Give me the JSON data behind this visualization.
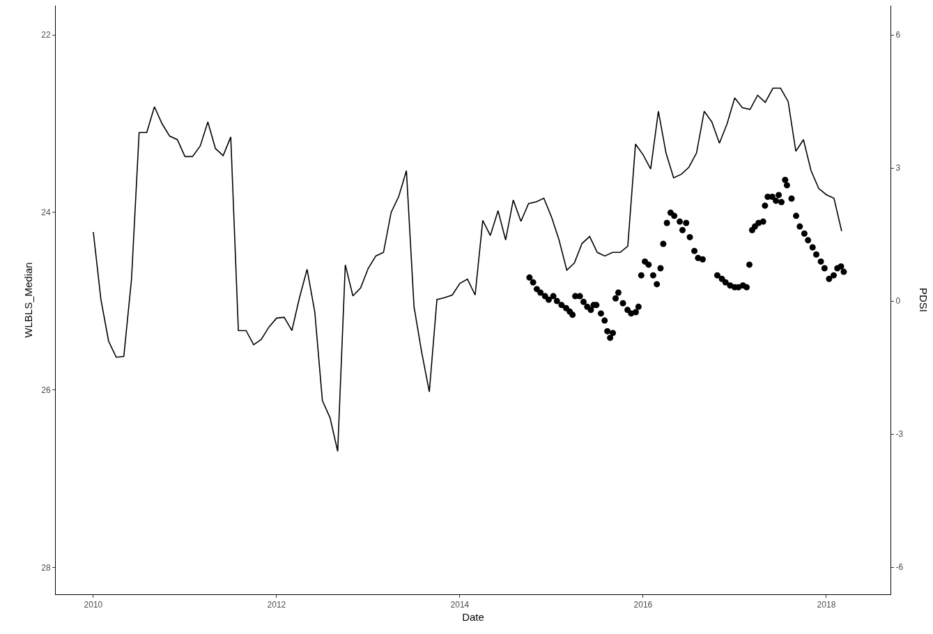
{
  "chart_data": {
    "type": "line",
    "xlabel": "Date",
    "ylabel": "WLBLS_Median",
    "y2label": "PDSI",
    "xlim": [
      2009.59,
      2018.7
    ],
    "xticks": [
      2010,
      2012,
      2014,
      2016,
      2018
    ],
    "ylim": [
      28.3,
      21.67
    ],
    "yticks": [
      22,
      24,
      26,
      28
    ],
    "y2lim": [
      -6.61,
      6.66
    ],
    "y2ticks": [
      -6,
      -3,
      0,
      3,
      6
    ],
    "series": [
      {
        "color": "#000000",
        "marker": "none",
        "line_style": "solid",
        "x": [
          2010.0,
          2010.083,
          2010.167,
          2010.25,
          2010.333,
          2010.417,
          2010.5,
          2010.583,
          2010.667,
          2010.75,
          2010.833,
          2010.917,
          2011.0,
          2011.083,
          2011.167,
          2011.25,
          2011.333,
          2011.417,
          2011.5,
          2011.583,
          2011.667,
          2011.75,
          2011.833,
          2011.917,
          2012.0,
          2012.083,
          2012.167,
          2012.25,
          2012.333,
          2012.417,
          2012.5,
          2012.583,
          2012.667,
          2012.75,
          2012.833,
          2012.917,
          2013.0,
          2013.083,
          2013.167,
          2013.25,
          2013.333,
          2013.417,
          2013.5,
          2013.583,
          2013.667,
          2013.75,
          2013.833,
          2013.917,
          2014.0,
          2014.083,
          2014.167,
          2014.25,
          2014.333,
          2014.417,
          2014.5,
          2014.583,
          2014.667,
          2014.75,
          2014.833,
          2014.917,
          2015.0,
          2015.083,
          2015.167,
          2015.25,
          2015.333,
          2015.417,
          2015.5,
          2015.583,
          2015.667,
          2015.75,
          2015.833,
          2015.917,
          2016.0,
          2016.083,
          2016.167,
          2016.25,
          2016.333,
          2016.417,
          2016.5,
          2016.583,
          2016.667,
          2016.75,
          2016.833,
          2016.917,
          2017.0,
          2017.083,
          2017.167,
          2017.25,
          2017.333,
          2017.417,
          2017.5,
          2017.583,
          2017.667,
          2017.75,
          2017.833,
          2017.917,
          2018.0,
          2018.083,
          2018.167
        ],
        "values": [
          24.22,
          24.98,
          25.45,
          25.63,
          25.62,
          24.75,
          23.1,
          23.1,
          22.81,
          23.0,
          23.14,
          23.18,
          23.37,
          23.37,
          23.25,
          22.98,
          23.28,
          23.36,
          23.15,
          25.33,
          25.33,
          25.49,
          25.43,
          25.29,
          25.19,
          25.18,
          25.33,
          24.96,
          24.64,
          25.12,
          26.12,
          26.31,
          26.69,
          24.59,
          24.94,
          24.85,
          24.63,
          24.49,
          24.45,
          24.0,
          23.82,
          23.53,
          25.06,
          25.57,
          26.02,
          24.98,
          24.96,
          24.93,
          24.8,
          24.75,
          24.93,
          24.09,
          24.26,
          23.98,
          24.31,
          23.86,
          24.1,
          23.9,
          23.88,
          23.84,
          24.05,
          24.31,
          24.65,
          24.57,
          24.35,
          24.27,
          24.45,
          24.49,
          24.45,
          24.45,
          24.38,
          23.23,
          23.35,
          23.51,
          22.86,
          23.33,
          23.61,
          23.57,
          23.49,
          23.33,
          22.86,
          22.98,
          23.22,
          23.0,
          22.71,
          22.82,
          22.84,
          22.68,
          22.76,
          22.6,
          22.6,
          22.75,
          23.31,
          23.18,
          23.53,
          23.73,
          23.8,
          23.84,
          24.21
        ]
      },
      {
        "type": "scatter",
        "axis": "y2",
        "color": "#000000",
        "marker": "circle",
        "x": [
          2014.76,
          2014.8,
          2014.84,
          2014.88,
          2014.93,
          2014.97,
          2015.02,
          2015.06,
          2015.11,
          2015.16,
          2015.2,
          2015.23,
          2015.26,
          2015.31,
          2015.35,
          2015.39,
          2015.43,
          2015.46,
          2015.49,
          2015.54,
          2015.58,
          2015.61,
          2015.64,
          2015.67,
          2015.7,
          2015.73,
          2015.78,
          2015.83,
          2015.87,
          2015.92,
          2015.95,
          2015.98,
          2016.02,
          2016.06,
          2016.11,
          2016.15,
          2016.19,
          2016.22,
          2016.26,
          2016.3,
          2016.34,
          2016.4,
          2016.43,
          2016.47,
          2016.51,
          2016.56,
          2016.6,
          2016.65,
          2016.81,
          2016.86,
          2016.9,
          2016.95,
          2017.0,
          2017.04,
          2017.09,
          2017.13,
          2017.16,
          2017.19,
          2017.22,
          2017.26,
          2017.31,
          2017.33,
          2017.36,
          2017.41,
          2017.45,
          2017.48,
          2017.51,
          2017.55,
          2017.57,
          2017.62,
          2017.67,
          2017.71,
          2017.76,
          2017.8,
          2017.85,
          2017.89,
          2017.94,
          2017.98,
          2018.03,
          2018.08,
          2018.12,
          2018.16,
          2018.19
        ],
        "values": [
          0.53,
          0.42,
          0.27,
          0.19,
          0.11,
          0.03,
          0.11,
          0.0,
          -0.09,
          -0.16,
          -0.24,
          -0.31,
          0.11,
          0.11,
          -0.02,
          -0.13,
          -0.2,
          -0.09,
          -0.09,
          -0.28,
          -0.44,
          -0.68,
          -0.83,
          -0.72,
          0.06,
          0.19,
          -0.05,
          -0.2,
          -0.28,
          -0.25,
          -0.13,
          0.58,
          0.89,
          0.82,
          0.58,
          0.38,
          0.74,
          1.29,
          1.76,
          1.99,
          1.92,
          1.79,
          1.6,
          1.76,
          1.44,
          1.13,
          0.97,
          0.94,
          0.58,
          0.5,
          0.42,
          0.35,
          0.31,
          0.31,
          0.35,
          0.31,
          0.82,
          1.6,
          1.68,
          1.76,
          1.79,
          2.15,
          2.35,
          2.35,
          2.26,
          2.39,
          2.23,
          2.73,
          2.61,
          2.31,
          1.92,
          1.68,
          1.52,
          1.37,
          1.21,
          1.05,
          0.89,
          0.74,
          0.5,
          0.58,
          0.74,
          0.78,
          0.66
        ]
      }
    ]
  }
}
